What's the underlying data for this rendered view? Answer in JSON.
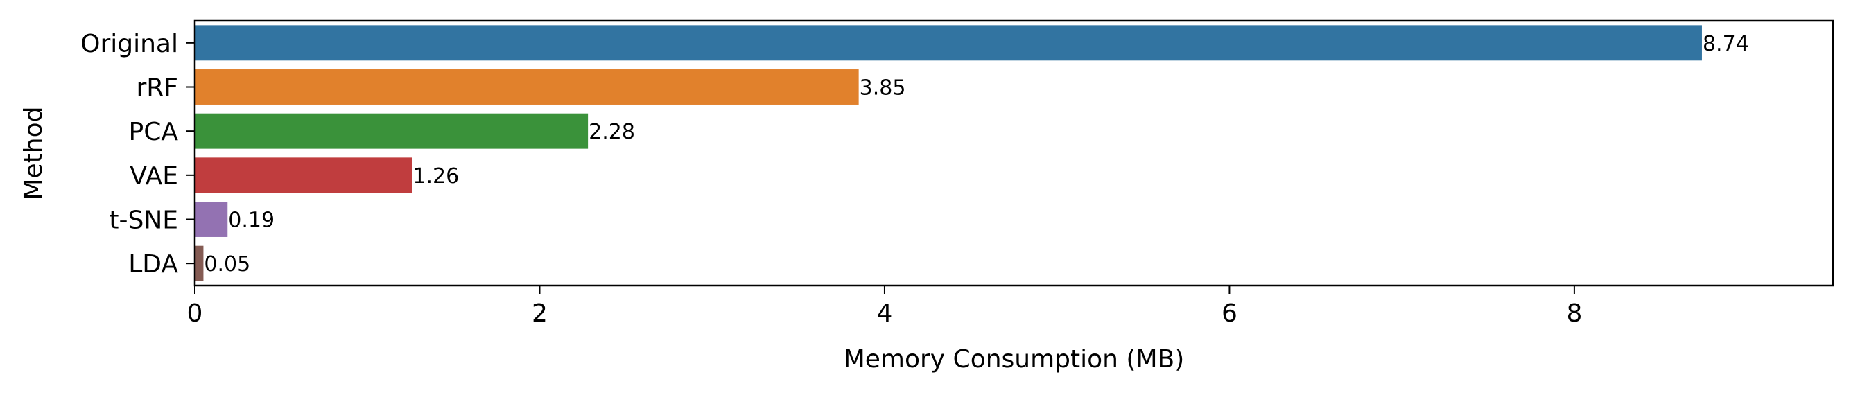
{
  "chart_data": {
    "type": "bar",
    "orientation": "horizontal",
    "title": "",
    "xlabel": "Memory Consumption (MB)",
    "ylabel": "Method",
    "categories": [
      "Original",
      "rRF",
      "PCA",
      "VAE",
      "t-SNE",
      "LDA"
    ],
    "values": [
      8.74,
      3.85,
      2.28,
      1.26,
      0.19,
      0.05
    ],
    "data_labels": [
      "8.74",
      "3.85",
      "2.28",
      "1.26",
      "0.19",
      "0.05"
    ],
    "colors": [
      "#3274a1",
      "#e1812c",
      "#3a923a",
      "#c03d3e",
      "#9372b2",
      "#845b53"
    ],
    "xlim": [
      0,
      9.5
    ],
    "xticks": [
      0,
      2,
      4,
      6,
      8
    ],
    "xtick_labels": [
      "0",
      "2",
      "4",
      "6",
      "8"
    ],
    "grid": false,
    "legend": "none"
  }
}
